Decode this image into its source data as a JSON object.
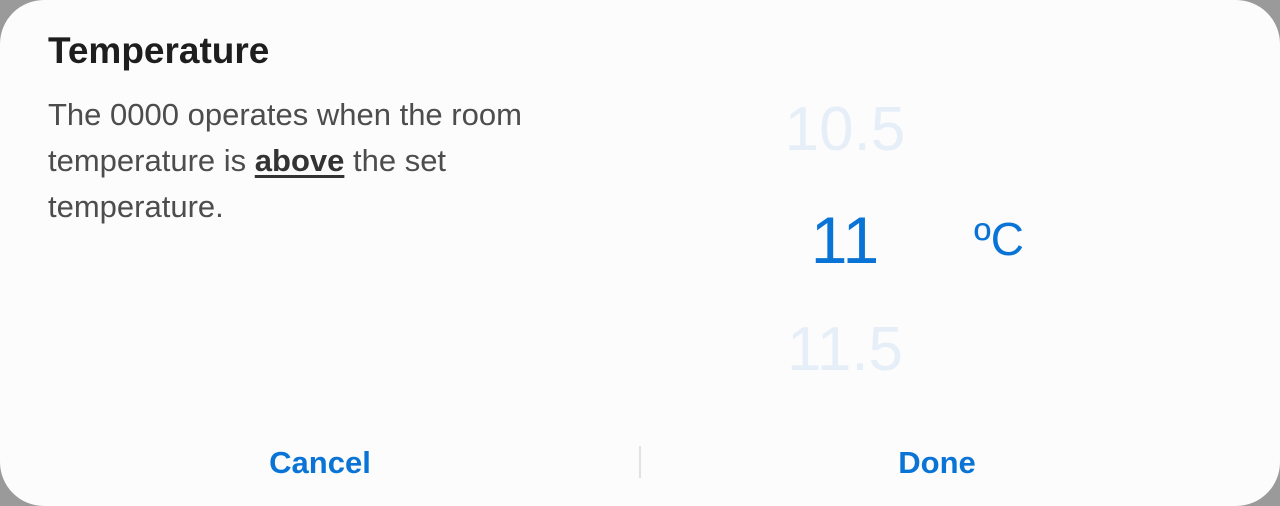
{
  "dialog": {
    "title": "Temperature",
    "description": {
      "before": "The 0000 operates when the room temperature is ",
      "emphasis": "above",
      "after": " the set temperature."
    }
  },
  "picker": {
    "previous": "10.5",
    "current": "11",
    "next": "11.5",
    "unit": "ºC"
  },
  "actions": {
    "cancel": "Cancel",
    "done": "Done"
  },
  "colors": {
    "accent": "#0a74d6",
    "faded_value": "#e6eef8",
    "background": "#fcfcfc"
  }
}
